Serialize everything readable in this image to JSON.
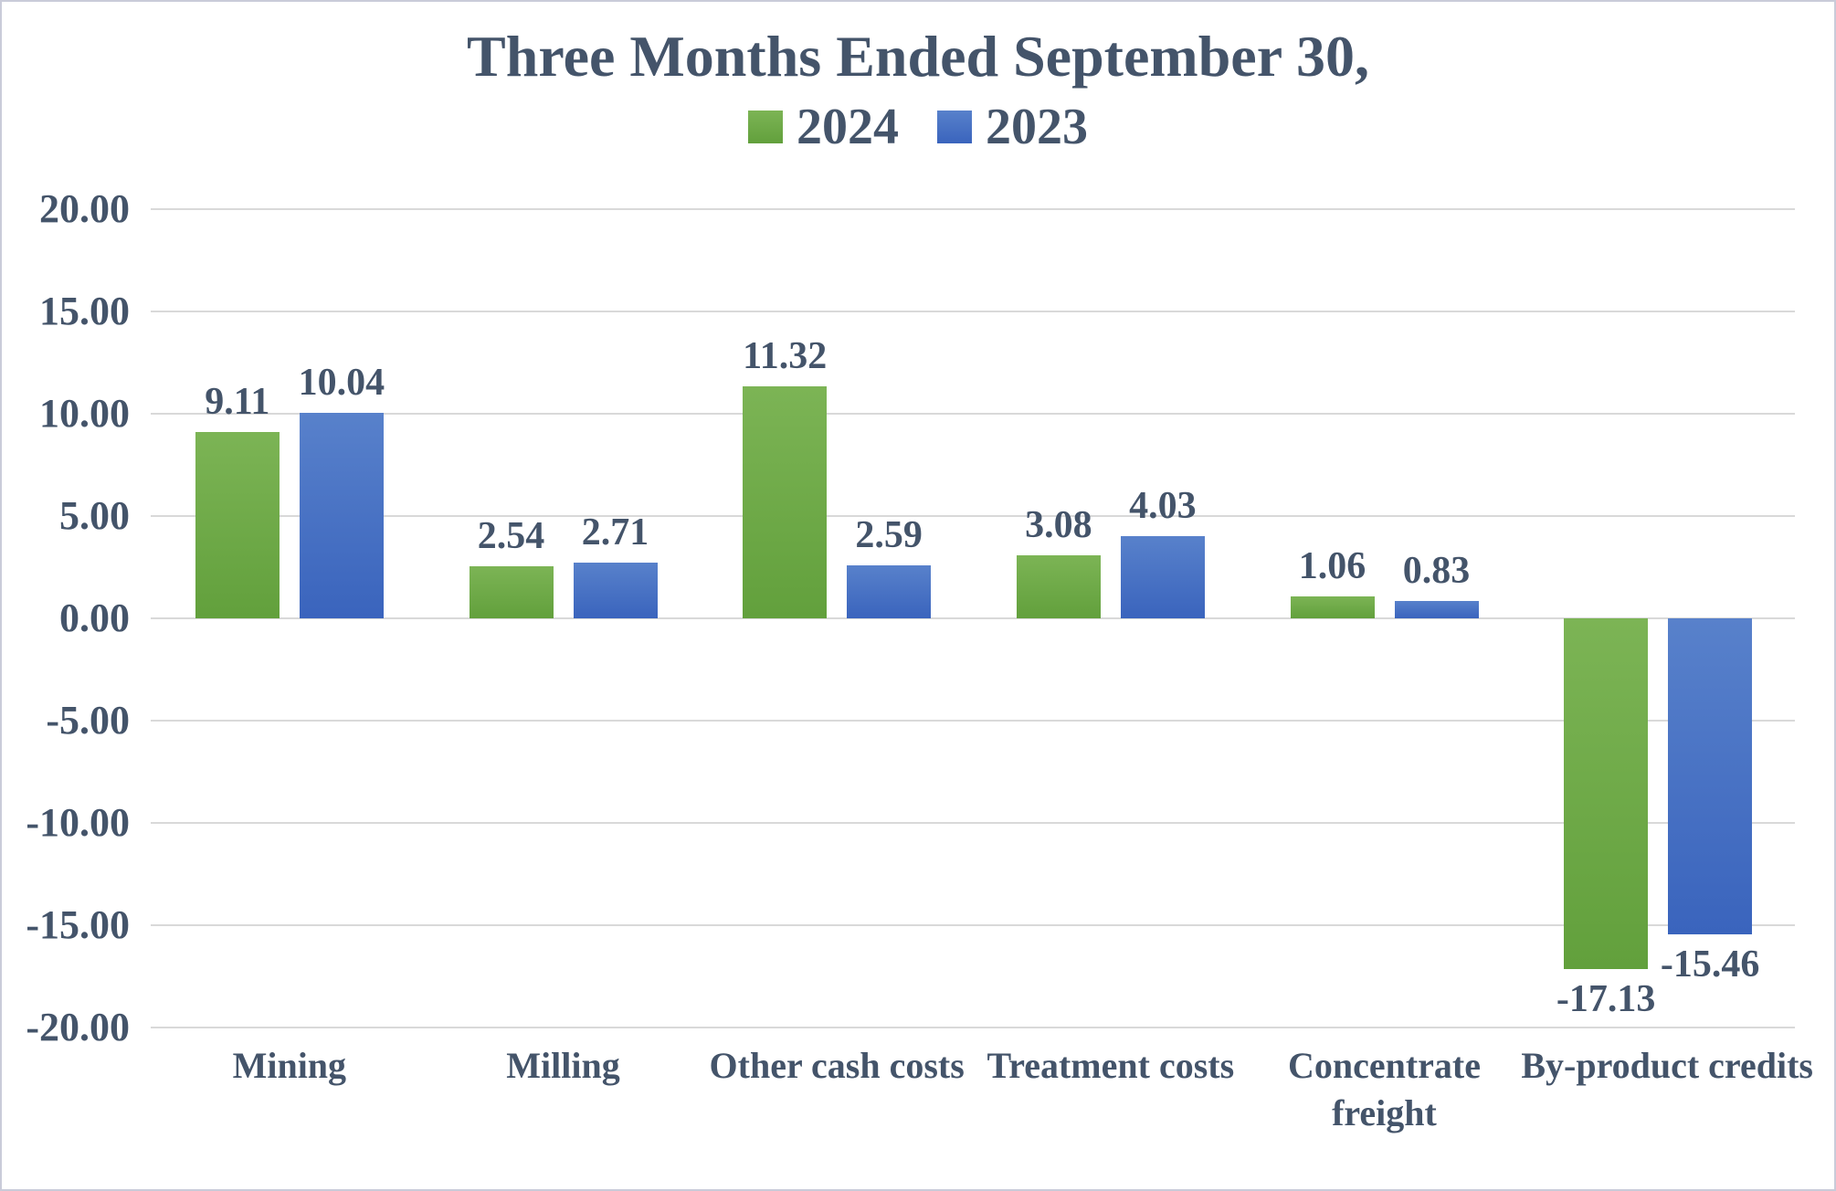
{
  "chart_data": {
    "type": "bar",
    "title": "Three Months Ended September 30,",
    "categories": [
      "Mining",
      "Milling",
      "Other cash costs",
      "Treatment costs",
      "Concentrate freight",
      "By-product credits"
    ],
    "category_label_lines": [
      [
        "Mining"
      ],
      [
        "Milling"
      ],
      [
        "Other cash costs"
      ],
      [
        "Treatment costs"
      ],
      [
        "Concentrate",
        "freight"
      ],
      [
        "By-product credits"
      ]
    ],
    "series": [
      {
        "name": "2024",
        "color_top": "#7CB455",
        "color_bottom": "#62A03C",
        "values": [
          9.11,
          2.54,
          11.32,
          3.08,
          1.06,
          -17.13
        ],
        "value_labels": [
          "9.11",
          "2.54",
          "11.32",
          "3.08",
          "1.06",
          "-17.13"
        ]
      },
      {
        "name": "2023",
        "color_top": "#5881CB",
        "color_bottom": "#3A64BD",
        "values": [
          10.04,
          2.71,
          2.59,
          4.03,
          0.83,
          -15.46
        ],
        "value_labels": [
          "10.04",
          "2.71",
          "2.59",
          "4.03",
          "0.83",
          "-15.46"
        ]
      }
    ],
    "ylim": [
      -20,
      20
    ],
    "ytick_values": [
      20,
      15,
      10,
      5,
      0,
      -5,
      -10,
      -15,
      -20
    ],
    "ytick_labels": [
      "20.00",
      "15.00",
      "10.00",
      "5.00",
      "0.00",
      "-5.00",
      "-10.00",
      "-15.00",
      "-20.00"
    ],
    "grid": true,
    "legend_position": "top",
    "text_color": "#44546A",
    "gridline_color": "#D9D9D9"
  }
}
